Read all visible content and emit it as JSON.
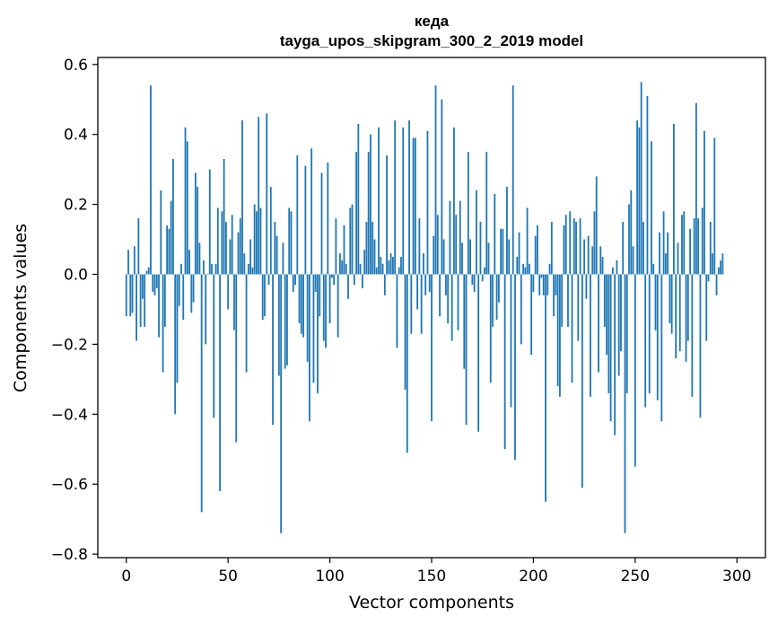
{
  "chart_data": {
    "type": "bar",
    "title": "кеда",
    "subtitle": "tayga_upos_skipgram_300_2_2019 model",
    "xlabel": "Vector components",
    "ylabel": "Components values",
    "xlim": [
      -14,
      314
    ],
    "ylim": [
      -0.81,
      0.62
    ],
    "xticks": [
      0,
      50,
      100,
      150,
      200,
      250,
      300
    ],
    "yticks": [
      0.6,
      0.4,
      0.2,
      0.0,
      -0.2,
      -0.4,
      -0.6,
      -0.8
    ],
    "xtick_labels": [
      "0",
      "50",
      "100",
      "150",
      "200",
      "250",
      "300"
    ],
    "ytick_labels": [
      "0.6",
      "0.4",
      "0.2",
      "0.0",
      "−0.2",
      "−0.4",
      "−0.6",
      "−0.8"
    ],
    "bar_color": "#1f77b4",
    "series": [
      {
        "name": "кеда",
        "values": [
          -0.12,
          0.07,
          -0.12,
          -0.11,
          0.08,
          -0.19,
          0.16,
          -0.15,
          -0.07,
          -0.15,
          0.01,
          0.02,
          0.54,
          -0.05,
          -0.06,
          -0.04,
          -0.18,
          0.24,
          -0.28,
          -0.15,
          0.14,
          0.13,
          0.21,
          0.33,
          -0.4,
          -0.31,
          -0.09,
          0.03,
          -0.13,
          0.42,
          0.38,
          0.07,
          -0.11,
          -0.08,
          0.29,
          0.25,
          0.09,
          -0.68,
          0.04,
          -0.2,
          0.0,
          0.3,
          0.03,
          -0.41,
          0.03,
          0.19,
          -0.62,
          0.18,
          0.33,
          0.15,
          -0.1,
          0.1,
          0.17,
          -0.16,
          -0.48,
          0.12,
          0.16,
          0.44,
          0.06,
          -0.28,
          0.03,
          0.1,
          0.02,
          0.2,
          0.18,
          0.45,
          0.19,
          -0.13,
          -0.12,
          0.46,
          -0.03,
          0.25,
          -0.43,
          0.15,
          0.11,
          -0.29,
          -0.74,
          0.09,
          -0.27,
          -0.26,
          0.19,
          0.18,
          -0.05,
          -0.03,
          0.34,
          -0.14,
          -0.17,
          -0.18,
          0.31,
          -0.25,
          -0.42,
          0.36,
          -0.31,
          -0.05,
          -0.34,
          -0.12,
          0.29,
          -0.19,
          -0.21,
          0.32,
          -0.14,
          -0.01,
          -0.03,
          0.16,
          -0.18,
          0.06,
          0.04,
          0.14,
          0.03,
          -0.07,
          0.19,
          0.2,
          -0.03,
          0.35,
          0.43,
          0.03,
          -0.04,
          0.07,
          0.15,
          0.35,
          0.4,
          0.15,
          0.1,
          0.02,
          0.42,
          0.05,
          0.03,
          -0.06,
          0.34,
          0.04,
          0.06,
          0.05,
          0.44,
          -0.21,
          0.02,
          0.05,
          0.42,
          -0.33,
          -0.51,
          0.44,
          -0.17,
          0.39,
          0.39,
          -0.1,
          0.16,
          -0.17,
          0.06,
          -0.06,
          0.41,
          -0.05,
          -0.42,
          0.11,
          0.54,
          0.17,
          -0.12,
          0.5,
          0.1,
          -0.06,
          -0.14,
          0.21,
          -0.19,
          0.42,
          0.17,
          -0.16,
          0.21,
          0.09,
          -0.27,
          -0.43,
          0.35,
          0.1,
          -0.03,
          -0.05,
          0.24,
          -0.45,
          0.15,
          -0.02,
          0.02,
          0.35,
          0.09,
          -0.31,
          -0.15,
          0.23,
          -0.13,
          -0.08,
          0.13,
          0.13,
          -0.5,
          0.25,
          0.1,
          -0.38,
          0.54,
          -0.53,
          0.05,
          0.12,
          -0.2,
          0.03,
          0.02,
          0.19,
          0.03,
          -0.23,
          -0.05,
          0.11,
          0.14,
          -0.06,
          -0.01,
          -0.06,
          -0.65,
          -0.06,
          0.03,
          0.15,
          -0.12,
          -0.06,
          -0.32,
          -0.35,
          -0.15,
          0.14,
          0.17,
          -0.15,
          0.18,
          -0.31,
          0.16,
          0.15,
          -0.19,
          0.16,
          -0.61,
          0.1,
          -0.07,
          0.11,
          -0.35,
          0.08,
          0.18,
          0.28,
          -0.28,
          0.08,
          0.05,
          -0.15,
          -0.23,
          -0.34,
          -0.42,
          0.02,
          -0.46,
          0.04,
          -0.29,
          -0.22,
          0.15,
          -0.74,
          -0.34,
          0.2,
          0.24,
          0.08,
          -0.55,
          0.44,
          0.42,
          0.55,
          0.15,
          -0.38,
          0.51,
          -0.34,
          0.38,
          0.03,
          -0.16,
          -0.36,
          0.12,
          -0.42,
          0.18,
          0.06,
          0.12,
          -0.14,
          -0.17,
          0.43,
          -0.24,
          0.09,
          -0.22,
          0.17,
          0.18,
          -0.25,
          -0.19,
          0.13,
          -0.35,
          0.16,
          0.49,
          0.16,
          -0.41,
          0.19,
          0.41,
          -0.19,
          -0.02,
          0.15,
          0.06,
          0.39,
          -0.06,
          0.02,
          0.04,
          0.06
        ]
      }
    ]
  }
}
